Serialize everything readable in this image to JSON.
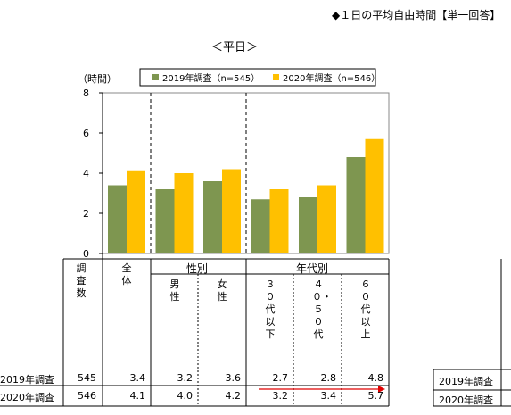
{
  "page_title": "◆１日の平均自由時間【単一回答】",
  "subtitle": "＜平日＞",
  "chart_data": {
    "type": "bar",
    "ylabel": "（時間）",
    "ylim": [
      0,
      8
    ],
    "yticks": [
      "0",
      "2",
      "4",
      "6",
      "8"
    ],
    "categories": [
      "全体",
      "男性",
      "女性",
      "３０代以下",
      "４０・５０代",
      "６０代以上"
    ],
    "series": [
      {
        "name": "2019年調査（n=545）",
        "values": [
          3.4,
          3.2,
          3.6,
          2.7,
          2.8,
          4.8
        ],
        "color": "#7e9650"
      },
      {
        "name": "2020年調査（n=546）",
        "values": [
          4.1,
          4.0,
          4.2,
          3.2,
          3.4,
          5.7
        ],
        "color": "#ffc000"
      }
    ],
    "legend": "top"
  },
  "table": {
    "count_header": "調査数",
    "group_headers": {
      "gender": "性別",
      "age": "年代別"
    },
    "column_headers": [
      "全体",
      "男性",
      "女性",
      "３０代以下",
      "４０・５０代",
      "６０代以上"
    ],
    "rows": [
      {
        "label": "2019年調査",
        "count": "545",
        "values": [
          "3.4",
          "3.2",
          "3.6",
          "2.7",
          "2.8",
          "4.8"
        ]
      },
      {
        "label": "2020年調査",
        "count": "546",
        "values": [
          "4.1",
          "4.0",
          "4.2",
          "3.2",
          "3.4",
          "5.7"
        ]
      }
    ]
  },
  "side_table": {
    "row_labels": [
      "2019年調査",
      "2020年調査"
    ]
  }
}
